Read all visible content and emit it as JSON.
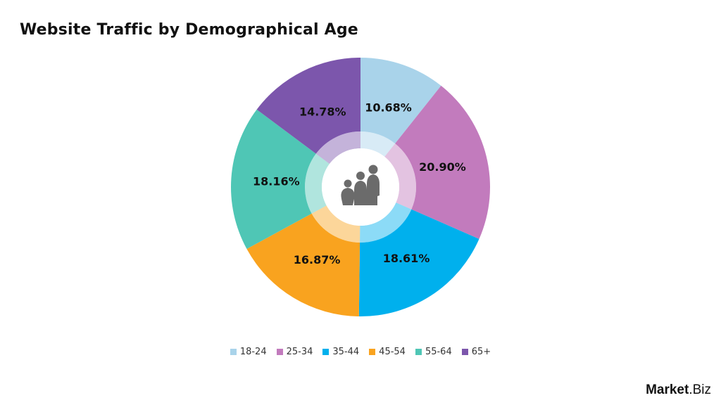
{
  "chart_data": {
    "type": "pie",
    "variant": "donut",
    "title": "Website Traffic by Demographical Age",
    "categories": [
      "18-24",
      "25-34",
      "35-44",
      "45-54",
      "55-64",
      "65+"
    ],
    "values": [
      10.68,
      20.9,
      18.61,
      16.87,
      18.16,
      14.78
    ],
    "labels": [
      "10.68%",
      "20.90%",
      "18.61%",
      "16.87%",
      "18.16%",
      "14.78%"
    ],
    "colors": [
      "#a9d3ea",
      "#c27bbd",
      "#00b0ed",
      "#f9a31f",
      "#4fc6b5",
      "#7c56ac"
    ],
    "legend_position": "bottom",
    "center_icon": "family-people-icon"
  },
  "brand": {
    "name_bold": "Market",
    "name_rest": ".Biz"
  }
}
